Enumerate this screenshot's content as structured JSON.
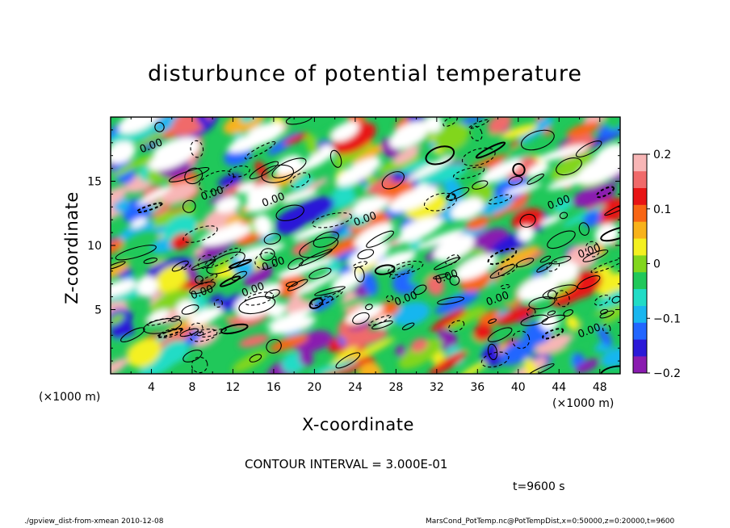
{
  "chart_data": {
    "type": "heatmap",
    "title": "disturbunce of potential temperature",
    "xlabel": "X-coordinate",
    "ylabel": "Z-coordinate",
    "x_unit_label": "(×1000 m)",
    "xlim": [
      0,
      50
    ],
    "ylim": [
      0,
      20
    ],
    "x_ticks": [
      4,
      8,
      12,
      16,
      20,
      24,
      28,
      32,
      36,
      40,
      44,
      48
    ],
    "y_ticks": [
      5,
      10,
      15
    ],
    "colorbar": {
      "range": [
        -0.2,
        0.2
      ],
      "ticks": [
        0.2,
        0.1,
        0,
        -0.1,
        -0.2
      ],
      "tick_labels": [
        "0.2",
        "0.1",
        "0",
        "−0.1",
        "−0.2"
      ],
      "colors": [
        "#8a1bb0",
        "#2b19d8",
        "#2266ff",
        "#19b6ef",
        "#21dcc6",
        "#20c85a",
        "#82d61d",
        "#f4f020",
        "#f8b21a",
        "#f86614",
        "#e81414",
        "#f06a6a",
        "#f8b6b6"
      ]
    },
    "contour_labels": [
      "0.00"
    ],
    "grid": false
  },
  "contour_interval": "CONTOUR INTERVAL = 3.000E-01",
  "time_label": "t=9600 s",
  "footer_left": "./gpview_dist-from-xmean  2010-12-08",
  "footer_right": "MarsCond_PotTemp.nc@PotTempDist,x=0:50000,z=0:20000,t=9600"
}
